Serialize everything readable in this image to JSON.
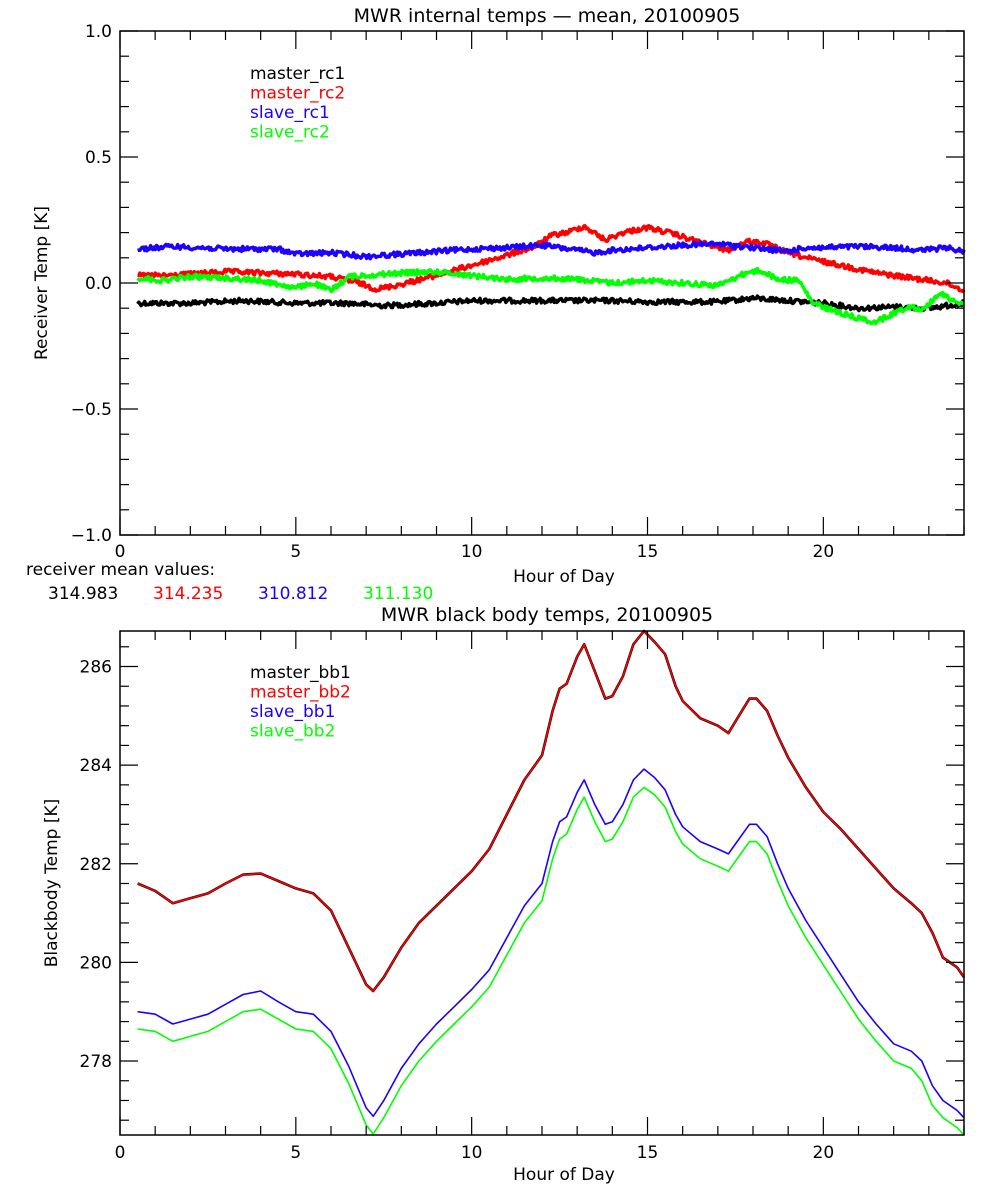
{
  "chart_data": [
    {
      "type": "line",
      "title": "MWR internal temps - mean, 20100905",
      "xlabel": "Hour of Day",
      "ylabel": "Receiver Temp [K]",
      "xlim": [
        0,
        24
      ],
      "ylim": [
        -1.0,
        1.0
      ],
      "xticks": [
        0,
        5,
        10,
        15,
        20
      ],
      "xtick_labels": [
        "0",
        "5",
        "10",
        "15",
        "20"
      ],
      "yticks": [
        -1.0,
        -0.5,
        0.0,
        0.5,
        1.0
      ],
      "ytick_labels": [
        "-1.0",
        "-0.5",
        "0.0",
        "0.5",
        "1.0"
      ],
      "legend_position": "top-left",
      "grid": false,
      "annotation": {
        "label": "receiver mean values:",
        "values": [
          "314.983",
          "314.235",
          "310.812",
          "311.130"
        ]
      },
      "series": [
        {
          "name": "master_rc1",
          "color": "#000000",
          "x": [
            0.5,
            2,
            3.5,
            5,
            6.5,
            7.5,
            9,
            10,
            11,
            12,
            13,
            14,
            15,
            16,
            17,
            18,
            19,
            20,
            21,
            22,
            23,
            24
          ],
          "values": [
            -0.08,
            -0.08,
            -0.07,
            -0.08,
            -0.08,
            -0.09,
            -0.08,
            -0.07,
            -0.07,
            -0.07,
            -0.07,
            -0.07,
            -0.075,
            -0.075,
            -0.075,
            -0.06,
            -0.07,
            -0.08,
            -0.1,
            -0.095,
            -0.1,
            -0.08
          ]
        },
        {
          "name": "master_rc2",
          "color": "#ff0000",
          "x": [
            0.5,
            1.5,
            3,
            4,
            5,
            6,
            6.8,
            7.3,
            8,
            9,
            10,
            11,
            11.8,
            12.3,
            12.7,
            13.2,
            13.8,
            14.3,
            15,
            15.6,
            16.3,
            16.8,
            17.3,
            17.8,
            18.3,
            18.8,
            19.5,
            20.5,
            21.5,
            22.5,
            23.5,
            24
          ],
          "values": [
            0.03,
            0.03,
            0.045,
            0.04,
            0.035,
            0.025,
            0.0,
            -0.025,
            -0.005,
            0.03,
            0.07,
            0.11,
            0.145,
            0.19,
            0.2,
            0.225,
            0.17,
            0.2,
            0.22,
            0.2,
            0.17,
            0.15,
            0.13,
            0.165,
            0.16,
            0.13,
            0.1,
            0.07,
            0.04,
            0.02,
            0.0,
            -0.03
          ]
        },
        {
          "name": "slave_rc1",
          "color": "#1e00ff",
          "x": [
            0.5,
            1.5,
            3,
            4.5,
            5,
            6,
            7,
            8,
            9,
            10,
            11,
            12,
            12.5,
            13.5,
            14,
            15,
            16,
            17,
            18,
            19,
            19.5,
            20,
            21,
            22,
            22.8,
            23.5,
            24
          ],
          "values": [
            0.135,
            0.145,
            0.135,
            0.135,
            0.115,
            0.12,
            0.105,
            0.115,
            0.125,
            0.135,
            0.14,
            0.15,
            0.14,
            0.12,
            0.13,
            0.14,
            0.15,
            0.155,
            0.14,
            0.125,
            0.14,
            0.14,
            0.145,
            0.14,
            0.13,
            0.14,
            0.125
          ]
        },
        {
          "name": "slave_rc2",
          "color": "#00ff00",
          "x": [
            0.5,
            1.2,
            2,
            3,
            4,
            5,
            5.5,
            6,
            6.5,
            7,
            7.5,
            8,
            9,
            10,
            11,
            12,
            13,
            14,
            15,
            16,
            17,
            17.8,
            18.2,
            18.7,
            19.3,
            19.7,
            20.3,
            21,
            21.5,
            22,
            22.5,
            22.8,
            23.3,
            23.7,
            24
          ],
          "values": [
            0.02,
            0.01,
            0.025,
            0.02,
            0.01,
            -0.02,
            0.0,
            -0.03,
            0.025,
            0.03,
            0.035,
            0.04,
            0.045,
            0.03,
            0.015,
            0.02,
            0.015,
            0.0,
            0.01,
            0.0,
            -0.01,
            0.04,
            0.05,
            0.015,
            0.01,
            -0.08,
            -0.11,
            -0.14,
            -0.155,
            -0.12,
            -0.09,
            -0.11,
            -0.04,
            -0.07,
            -0.08
          ]
        }
      ]
    },
    {
      "type": "line",
      "title": "MWR black body temps, 20100905",
      "xlabel": "Hour of Day",
      "ylabel": "Blackbody Temp [K]",
      "xlim": [
        0,
        24
      ],
      "ylim": [
        276.5,
        286.72
      ],
      "xticks": [
        0,
        5,
        10,
        15,
        20
      ],
      "xtick_labels": [
        "0",
        "5",
        "10",
        "15",
        "20"
      ],
      "yticks": [
        278,
        280,
        282,
        284,
        286
      ],
      "ytick_labels": [
        "278",
        "280",
        "282",
        "284",
        "286"
      ],
      "legend_position": "top-left",
      "grid": false,
      "x": [
        0.5,
        1.0,
        1.5,
        2.0,
        2.5,
        3.0,
        3.5,
        4.0,
        4.5,
        5.0,
        5.5,
        6.0,
        6.5,
        7.0,
        7.2,
        7.5,
        8.0,
        8.5,
        9.0,
        9.5,
        10.0,
        10.5,
        11.0,
        11.5,
        12.0,
        12.3,
        12.5,
        12.7,
        13.0,
        13.2,
        13.5,
        13.8,
        14.0,
        14.3,
        14.6,
        14.9,
        15.2,
        15.5,
        15.8,
        16.0,
        16.5,
        17.0,
        17.3,
        17.6,
        17.9,
        18.1,
        18.4,
        18.7,
        19.0,
        19.5,
        20.0,
        20.5,
        21.0,
        21.5,
        22.0,
        22.5,
        22.8,
        23.1,
        23.4,
        23.8,
        24.0
      ],
      "series": [
        {
          "name": "master_bb1",
          "color": "#000000",
          "values": [
            281.6,
            281.45,
            281.2,
            281.3,
            281.4,
            281.6,
            281.78,
            281.8,
            281.65,
            281.5,
            281.4,
            281.05,
            280.3,
            279.55,
            279.42,
            279.7,
            280.3,
            280.8,
            281.15,
            281.5,
            281.85,
            282.3,
            283.0,
            283.7,
            284.2,
            285.1,
            285.55,
            285.65,
            286.2,
            286.45,
            285.9,
            285.35,
            285.4,
            285.8,
            286.45,
            286.72,
            286.5,
            286.25,
            285.6,
            285.3,
            284.95,
            284.8,
            284.65,
            285.0,
            285.35,
            285.35,
            285.1,
            284.6,
            284.15,
            283.55,
            283.05,
            282.7,
            282.3,
            281.9,
            281.5,
            281.2,
            281.0,
            280.6,
            280.1,
            279.9,
            279.7
          ]
        },
        {
          "name": "master_bb2",
          "color": "#ff0000",
          "values": [
            281.6,
            281.45,
            281.2,
            281.3,
            281.4,
            281.6,
            281.78,
            281.8,
            281.65,
            281.5,
            281.4,
            281.05,
            280.3,
            279.55,
            279.42,
            279.7,
            280.3,
            280.8,
            281.15,
            281.5,
            281.85,
            282.3,
            283.0,
            283.7,
            284.2,
            285.1,
            285.55,
            285.65,
            286.2,
            286.45,
            285.9,
            285.35,
            285.4,
            285.8,
            286.45,
            286.72,
            286.5,
            286.25,
            285.6,
            285.3,
            284.95,
            284.8,
            284.65,
            285.0,
            285.35,
            285.35,
            285.1,
            284.6,
            284.15,
            283.55,
            283.05,
            282.7,
            282.3,
            281.9,
            281.5,
            281.2,
            281.0,
            280.6,
            280.1,
            279.9,
            279.7
          ]
        },
        {
          "name": "slave_bb1",
          "color": "#1e00ff",
          "values": [
            279.0,
            278.95,
            278.75,
            278.85,
            278.95,
            279.15,
            279.35,
            279.42,
            279.2,
            279.0,
            278.95,
            278.6,
            277.9,
            277.05,
            276.88,
            277.2,
            277.85,
            278.35,
            278.75,
            279.1,
            279.45,
            279.85,
            280.5,
            281.15,
            281.6,
            282.45,
            282.85,
            282.95,
            283.45,
            283.7,
            283.2,
            282.8,
            282.85,
            283.2,
            283.7,
            283.92,
            283.75,
            283.5,
            283.0,
            282.75,
            282.45,
            282.3,
            282.2,
            282.5,
            282.8,
            282.8,
            282.55,
            282.0,
            281.5,
            280.85,
            280.3,
            279.75,
            279.2,
            278.75,
            278.35,
            278.2,
            278.0,
            277.5,
            277.2,
            277.0,
            276.85
          ]
        },
        {
          "name": "slave_bb2",
          "color": "#00ff00",
          "values": [
            278.65,
            278.6,
            278.4,
            278.5,
            278.6,
            278.8,
            279.0,
            279.05,
            278.85,
            278.65,
            278.6,
            278.25,
            277.55,
            276.7,
            276.52,
            276.85,
            277.5,
            278.0,
            278.4,
            278.75,
            279.1,
            279.5,
            280.15,
            280.8,
            281.25,
            282.1,
            282.5,
            282.6,
            283.1,
            283.35,
            282.85,
            282.45,
            282.5,
            282.85,
            283.35,
            283.55,
            283.4,
            283.15,
            282.65,
            282.4,
            282.1,
            281.95,
            281.85,
            282.15,
            282.45,
            282.45,
            282.2,
            281.65,
            281.15,
            280.5,
            279.95,
            279.4,
            278.85,
            278.4,
            278.0,
            277.85,
            277.6,
            277.1,
            276.85,
            276.65,
            276.5
          ]
        }
      ]
    }
  ]
}
